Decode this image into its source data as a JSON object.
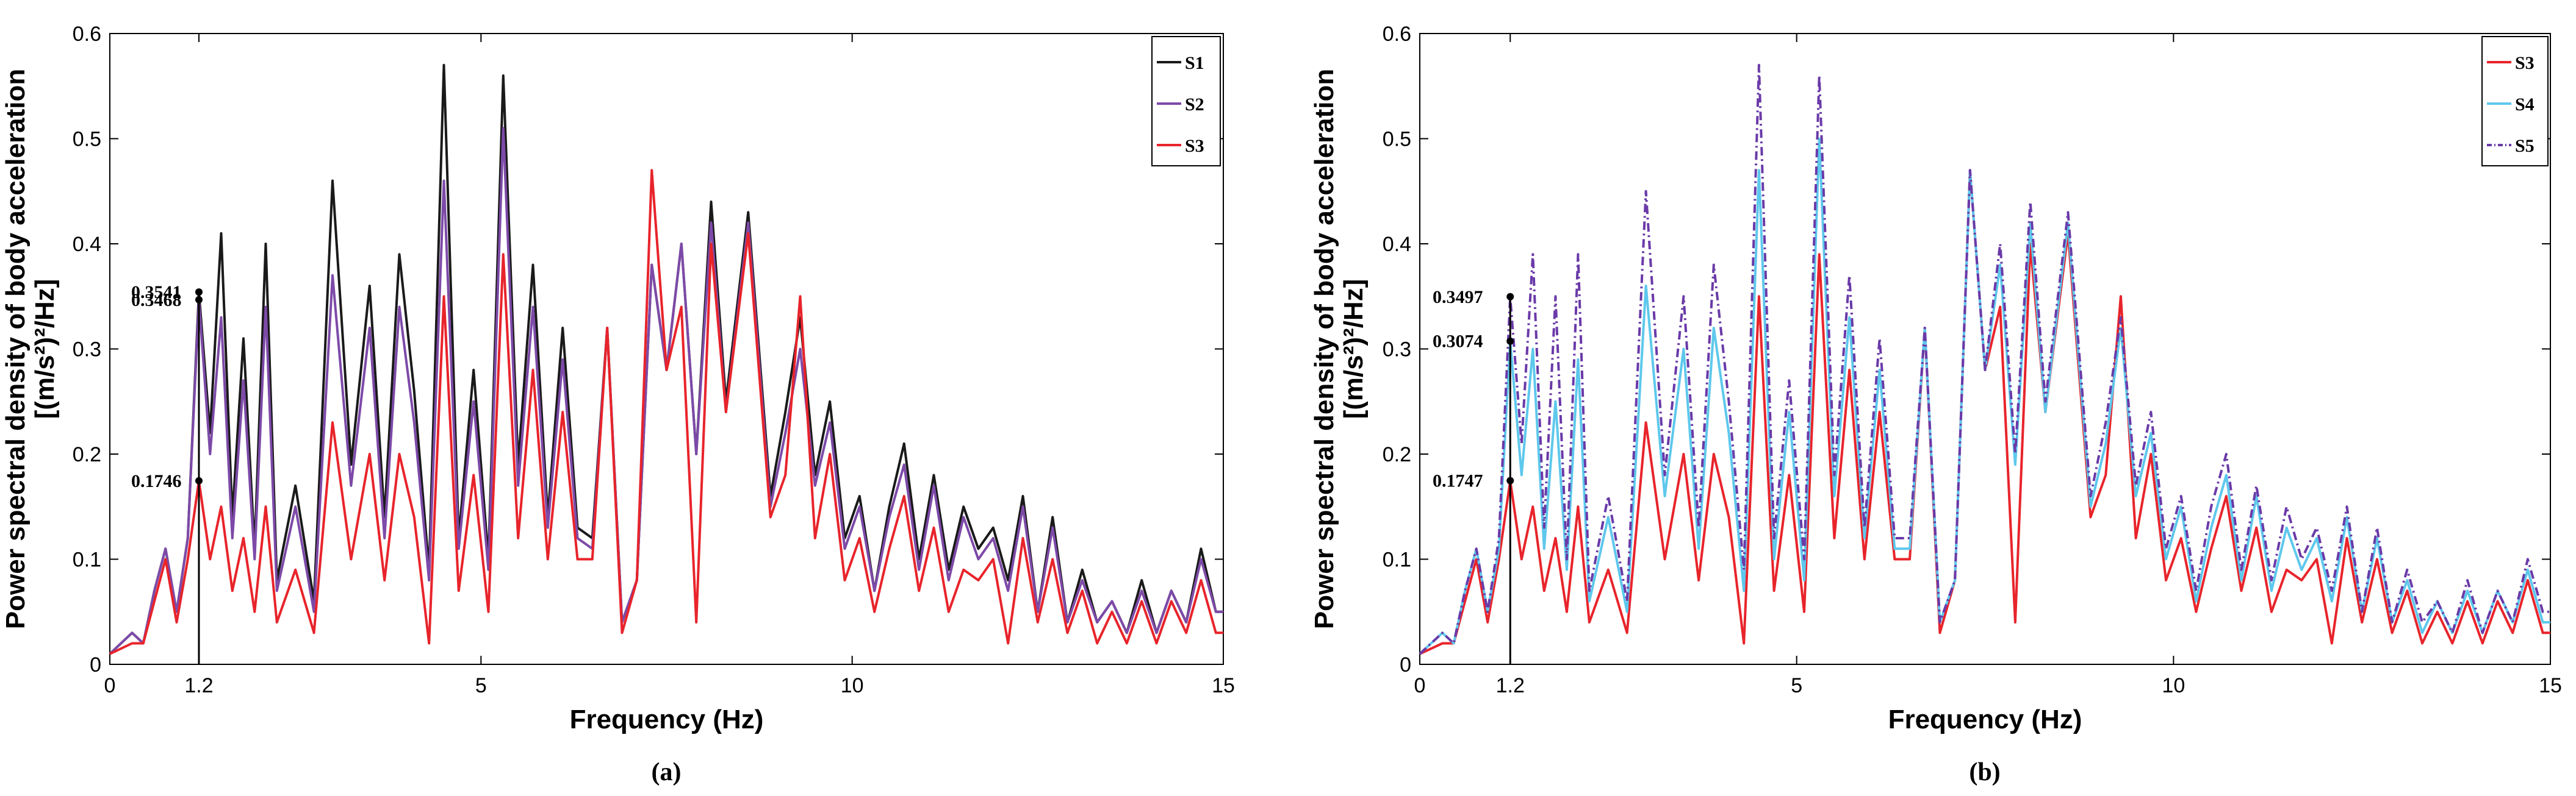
{
  "chart_data": [
    {
      "type": "line",
      "panel": "(a)",
      "xlabel": "Frequency (Hz)",
      "ylabel_line1": "Power spectral density of body acceleration",
      "ylabel_line2": "[(m/s²)²/Hz]",
      "xlim": [
        0,
        15
      ],
      "ylim": [
        0,
        0.6
      ],
      "xticks": [
        "0",
        "1.2",
        "5",
        "10",
        "15"
      ],
      "xtick_values": [
        0,
        1.2,
        5,
        10,
        15
      ],
      "yticks": [
        "0",
        "0.1",
        "0.2",
        "0.3",
        "0.4",
        "0.5",
        "0.6"
      ],
      "ytick_values": [
        0,
        0.1,
        0.2,
        0.3,
        0.4,
        0.5,
        0.6
      ],
      "legend_position": "top-right",
      "annotations": [
        {
          "x": 1.2,
          "y": 0.3541,
          "text": "0.3541"
        },
        {
          "x": 1.2,
          "y": 0.3468,
          "text": "0.3468"
        },
        {
          "x": 1.2,
          "y": 0.1746,
          "text": "0.1746"
        }
      ],
      "series": [
        {
          "name": "S1",
          "color": "#1a1a1a",
          "dash": "",
          "x": [
            0,
            0.3,
            0.45,
            0.6,
            0.75,
            0.9,
            1.05,
            1.2,
            1.35,
            1.5,
            1.65,
            1.8,
            1.95,
            2.1,
            2.25,
            2.5,
            2.75,
            3.0,
            3.25,
            3.5,
            3.7,
            3.9,
            4.1,
            4.3,
            4.5,
            4.7,
            4.9,
            5.1,
            5.3,
            5.5,
            5.7,
            5.9,
            6.1,
            6.3,
            6.5,
            6.7,
            6.9,
            7.1,
            7.3,
            7.5,
            7.7,
            7.9,
            8.1,
            8.3,
            8.6,
            8.9,
            9.1,
            9.3,
            9.5,
            9.7,
            9.9,
            10.1,
            10.3,
            10.5,
            10.7,
            10.9,
            11.1,
            11.3,
            11.5,
            11.7,
            11.9,
            12.1,
            12.3,
            12.5,
            12.7,
            12.9,
            13.1,
            13.3,
            13.5,
            13.7,
            13.9,
            14.1,
            14.3,
            14.5,
            14.7,
            14.9,
            15
          ],
          "y": [
            0.01,
            0.03,
            0.02,
            0.07,
            0.11,
            0.05,
            0.12,
            0.3541,
            0.22,
            0.41,
            0.14,
            0.31,
            0.11,
            0.4,
            0.08,
            0.17,
            0.06,
            0.46,
            0.19,
            0.36,
            0.14,
            0.39,
            0.26,
            0.09,
            0.57,
            0.12,
            0.28,
            0.1,
            0.56,
            0.19,
            0.38,
            0.14,
            0.32,
            0.13,
            0.12,
            0.32,
            0.04,
            0.08,
            0.38,
            0.28,
            0.4,
            0.2,
            0.44,
            0.25,
            0.43,
            0.16,
            0.24,
            0.33,
            0.18,
            0.25,
            0.12,
            0.16,
            0.07,
            0.15,
            0.21,
            0.1,
            0.18,
            0.09,
            0.15,
            0.11,
            0.13,
            0.08,
            0.16,
            0.05,
            0.14,
            0.04,
            0.09,
            0.04,
            0.06,
            0.03,
            0.08,
            0.03,
            0.07,
            0.04,
            0.11,
            0.05,
            0.05
          ]
        },
        {
          "name": "S2",
          "color": "#7d4aa8",
          "dash": "",
          "x": [
            0,
            0.3,
            0.45,
            0.6,
            0.75,
            0.9,
            1.05,
            1.2,
            1.35,
            1.5,
            1.65,
            1.8,
            1.95,
            2.1,
            2.25,
            2.5,
            2.75,
            3.0,
            3.25,
            3.5,
            3.7,
            3.9,
            4.1,
            4.3,
            4.5,
            4.7,
            4.9,
            5.1,
            5.3,
            5.5,
            5.7,
            5.9,
            6.1,
            6.3,
            6.5,
            6.7,
            6.9,
            7.1,
            7.3,
            7.5,
            7.7,
            7.9,
            8.1,
            8.3,
            8.6,
            8.9,
            9.1,
            9.3,
            9.5,
            9.7,
            9.9,
            10.1,
            10.3,
            10.5,
            10.7,
            10.9,
            11.1,
            11.3,
            11.5,
            11.7,
            11.9,
            12.1,
            12.3,
            12.5,
            12.7,
            12.9,
            13.1,
            13.3,
            13.5,
            13.7,
            13.9,
            14.1,
            14.3,
            14.5,
            14.7,
            14.9,
            15
          ],
          "y": [
            0.01,
            0.03,
            0.02,
            0.07,
            0.11,
            0.05,
            0.12,
            0.3468,
            0.2,
            0.33,
            0.12,
            0.27,
            0.1,
            0.34,
            0.07,
            0.15,
            0.05,
            0.37,
            0.17,
            0.32,
            0.12,
            0.34,
            0.23,
            0.08,
            0.46,
            0.11,
            0.25,
            0.09,
            0.51,
            0.17,
            0.34,
            0.13,
            0.29,
            0.12,
            0.11,
            0.32,
            0.04,
            0.08,
            0.38,
            0.28,
            0.4,
            0.2,
            0.42,
            0.24,
            0.42,
            0.15,
            0.22,
            0.3,
            0.17,
            0.23,
            0.11,
            0.15,
            0.07,
            0.14,
            0.19,
            0.09,
            0.17,
            0.08,
            0.14,
            0.1,
            0.12,
            0.07,
            0.15,
            0.05,
            0.13,
            0.04,
            0.08,
            0.04,
            0.06,
            0.03,
            0.07,
            0.03,
            0.07,
            0.04,
            0.1,
            0.05,
            0.05
          ]
        },
        {
          "name": "S3",
          "color": "#e8242b",
          "dash": "",
          "x": [
            0,
            0.3,
            0.45,
            0.6,
            0.75,
            0.9,
            1.05,
            1.2,
            1.35,
            1.5,
            1.65,
            1.8,
            1.95,
            2.1,
            2.25,
            2.5,
            2.75,
            3.0,
            3.25,
            3.5,
            3.7,
            3.9,
            4.1,
            4.3,
            4.5,
            4.7,
            4.9,
            5.1,
            5.3,
            5.5,
            5.7,
            5.9,
            6.1,
            6.3,
            6.5,
            6.7,
            6.9,
            7.1,
            7.3,
            7.5,
            7.7,
            7.9,
            8.1,
            8.3,
            8.6,
            8.9,
            9.1,
            9.3,
            9.5,
            9.7,
            9.9,
            10.1,
            10.3,
            10.5,
            10.7,
            10.9,
            11.1,
            11.3,
            11.5,
            11.7,
            11.9,
            12.1,
            12.3,
            12.5,
            12.7,
            12.9,
            13.1,
            13.3,
            13.5,
            13.7,
            13.9,
            14.1,
            14.3,
            14.5,
            14.7,
            14.9,
            15
          ],
          "y": [
            0.01,
            0.02,
            0.02,
            0.06,
            0.1,
            0.04,
            0.1,
            0.1746,
            0.1,
            0.15,
            0.07,
            0.12,
            0.05,
            0.15,
            0.04,
            0.09,
            0.03,
            0.23,
            0.1,
            0.2,
            0.08,
            0.2,
            0.14,
            0.02,
            0.35,
            0.07,
            0.18,
            0.05,
            0.39,
            0.12,
            0.28,
            0.1,
            0.24,
            0.1,
            0.1,
            0.32,
            0.03,
            0.08,
            0.47,
            0.28,
            0.34,
            0.04,
            0.4,
            0.24,
            0.41,
            0.14,
            0.18,
            0.35,
            0.12,
            0.2,
            0.08,
            0.12,
            0.05,
            0.11,
            0.16,
            0.07,
            0.13,
            0.05,
            0.09,
            0.08,
            0.1,
            0.02,
            0.12,
            0.04,
            0.1,
            0.03,
            0.07,
            0.02,
            0.05,
            0.02,
            0.06,
            0.02,
            0.06,
            0.03,
            0.08,
            0.03,
            0.03
          ]
        }
      ]
    },
    {
      "type": "line",
      "panel": "(b)",
      "xlabel": "Frequency (Hz)",
      "ylabel_line1": "Power spectral density of body acceleration",
      "ylabel_line2": "[(m/s²)²/Hz]",
      "xlim": [
        0,
        15
      ],
      "ylim": [
        0,
        0.6
      ],
      "xticks": [
        "0",
        "1.2",
        "5",
        "10",
        "15"
      ],
      "xtick_values": [
        0,
        1.2,
        5,
        10,
        15
      ],
      "yticks": [
        "0",
        "0.1",
        "0.2",
        "0.3",
        "0.4",
        "0.5",
        "0.6"
      ],
      "ytick_values": [
        0,
        0.1,
        0.2,
        0.3,
        0.4,
        0.5,
        0.6
      ],
      "legend_position": "top-right",
      "annotations": [
        {
          "x": 1.2,
          "y": 0.3497,
          "text": "0.3497"
        },
        {
          "x": 1.2,
          "y": 0.3074,
          "text": "0.3074"
        },
        {
          "x": 1.2,
          "y": 0.1747,
          "text": "0.1747"
        }
      ],
      "series": [
        {
          "name": "S3",
          "color": "#e8242b",
          "dash": "",
          "x": [
            0,
            0.3,
            0.45,
            0.6,
            0.75,
            0.9,
            1.05,
            1.2,
            1.35,
            1.5,
            1.65,
            1.8,
            1.95,
            2.1,
            2.25,
            2.5,
            2.75,
            3.0,
            3.25,
            3.5,
            3.7,
            3.9,
            4.1,
            4.3,
            4.5,
            4.7,
            4.9,
            5.1,
            5.3,
            5.5,
            5.7,
            5.9,
            6.1,
            6.3,
            6.5,
            6.7,
            6.9,
            7.1,
            7.3,
            7.5,
            7.7,
            7.9,
            8.1,
            8.3,
            8.6,
            8.9,
            9.1,
            9.3,
            9.5,
            9.7,
            9.9,
            10.1,
            10.3,
            10.5,
            10.7,
            10.9,
            11.1,
            11.3,
            11.5,
            11.7,
            11.9,
            12.1,
            12.3,
            12.5,
            12.7,
            12.9,
            13.1,
            13.3,
            13.5,
            13.7,
            13.9,
            14.1,
            14.3,
            14.5,
            14.7,
            14.9,
            15
          ],
          "y": [
            0.01,
            0.02,
            0.02,
            0.06,
            0.1,
            0.04,
            0.1,
            0.1747,
            0.1,
            0.15,
            0.07,
            0.12,
            0.05,
            0.15,
            0.04,
            0.09,
            0.03,
            0.23,
            0.1,
            0.2,
            0.08,
            0.2,
            0.14,
            0.02,
            0.35,
            0.07,
            0.18,
            0.05,
            0.39,
            0.12,
            0.28,
            0.1,
            0.24,
            0.1,
            0.1,
            0.32,
            0.03,
            0.08,
            0.47,
            0.28,
            0.34,
            0.04,
            0.4,
            0.24,
            0.41,
            0.14,
            0.18,
            0.35,
            0.12,
            0.2,
            0.08,
            0.12,
            0.05,
            0.11,
            0.16,
            0.07,
            0.13,
            0.05,
            0.09,
            0.08,
            0.1,
            0.02,
            0.12,
            0.04,
            0.1,
            0.03,
            0.07,
            0.02,
            0.05,
            0.02,
            0.06,
            0.02,
            0.06,
            0.03,
            0.08,
            0.03,
            0.03
          ]
        },
        {
          "name": "S4",
          "color": "#5ec8ec",
          "dash": "",
          "x": [
            0,
            0.3,
            0.45,
            0.6,
            0.75,
            0.9,
            1.05,
            1.2,
            1.35,
            1.5,
            1.65,
            1.8,
            1.95,
            2.1,
            2.25,
            2.5,
            2.75,
            3.0,
            3.25,
            3.5,
            3.7,
            3.9,
            4.1,
            4.3,
            4.5,
            4.7,
            4.9,
            5.1,
            5.3,
            5.5,
            5.7,
            5.9,
            6.1,
            6.3,
            6.5,
            6.7,
            6.9,
            7.1,
            7.3,
            7.5,
            7.7,
            7.9,
            8.1,
            8.3,
            8.6,
            8.9,
            9.1,
            9.3,
            9.5,
            9.7,
            9.9,
            10.1,
            10.3,
            10.5,
            10.7,
            10.9,
            11.1,
            11.3,
            11.5,
            11.7,
            11.9,
            12.1,
            12.3,
            12.5,
            12.7,
            12.9,
            13.1,
            13.3,
            13.5,
            13.7,
            13.9,
            14.1,
            14.3,
            14.5,
            14.7,
            14.9,
            15
          ],
          "y": [
            0.01,
            0.03,
            0.02,
            0.07,
            0.11,
            0.05,
            0.11,
            0.3074,
            0.18,
            0.3,
            0.11,
            0.25,
            0.09,
            0.29,
            0.06,
            0.14,
            0.05,
            0.36,
            0.16,
            0.3,
            0.11,
            0.32,
            0.22,
            0.07,
            0.47,
            0.1,
            0.24,
            0.08,
            0.5,
            0.16,
            0.33,
            0.12,
            0.28,
            0.11,
            0.11,
            0.32,
            0.04,
            0.08,
            0.47,
            0.28,
            0.38,
            0.19,
            0.42,
            0.24,
            0.42,
            0.15,
            0.21,
            0.32,
            0.16,
            0.22,
            0.1,
            0.15,
            0.06,
            0.13,
            0.18,
            0.08,
            0.16,
            0.07,
            0.13,
            0.09,
            0.12,
            0.06,
            0.14,
            0.05,
            0.12,
            0.04,
            0.08,
            0.03,
            0.06,
            0.03,
            0.07,
            0.03,
            0.07,
            0.04,
            0.09,
            0.04,
            0.04
          ]
        },
        {
          "name": "S5",
          "color": "#6a3aa8",
          "dash": "14,6,3,6",
          "x": [
            0,
            0.3,
            0.45,
            0.6,
            0.75,
            0.9,
            1.05,
            1.2,
            1.35,
            1.5,
            1.65,
            1.8,
            1.95,
            2.1,
            2.25,
            2.5,
            2.75,
            3.0,
            3.25,
            3.5,
            3.7,
            3.9,
            4.1,
            4.3,
            4.5,
            4.7,
            4.9,
            5.1,
            5.3,
            5.5,
            5.7,
            5.9,
            6.1,
            6.3,
            6.5,
            6.7,
            6.9,
            7.1,
            7.3,
            7.5,
            7.7,
            7.9,
            8.1,
            8.3,
            8.6,
            8.9,
            9.1,
            9.3,
            9.5,
            9.7,
            9.9,
            10.1,
            10.3,
            10.5,
            10.7,
            10.9,
            11.1,
            11.3,
            11.5,
            11.7,
            11.9,
            12.1,
            12.3,
            12.5,
            12.7,
            12.9,
            13.1,
            13.3,
            13.5,
            13.7,
            13.9,
            14.1,
            14.3,
            14.5,
            14.7,
            14.9,
            15
          ],
          "y": [
            0.01,
            0.03,
            0.02,
            0.07,
            0.11,
            0.05,
            0.12,
            0.3497,
            0.21,
            0.39,
            0.13,
            0.35,
            0.1,
            0.39,
            0.07,
            0.16,
            0.06,
            0.45,
            0.18,
            0.35,
            0.13,
            0.38,
            0.25,
            0.09,
            0.57,
            0.12,
            0.27,
            0.1,
            0.56,
            0.18,
            0.37,
            0.13,
            0.31,
            0.12,
            0.12,
            0.32,
            0.04,
            0.08,
            0.47,
            0.28,
            0.4,
            0.2,
            0.44,
            0.25,
            0.43,
            0.16,
            0.23,
            0.33,
            0.17,
            0.24,
            0.11,
            0.16,
            0.07,
            0.15,
            0.2,
            0.09,
            0.17,
            0.08,
            0.15,
            0.1,
            0.13,
            0.07,
            0.15,
            0.05,
            0.13,
            0.04,
            0.09,
            0.04,
            0.06,
            0.03,
            0.08,
            0.03,
            0.07,
            0.04,
            0.1,
            0.05,
            0.05
          ]
        }
      ]
    }
  ]
}
